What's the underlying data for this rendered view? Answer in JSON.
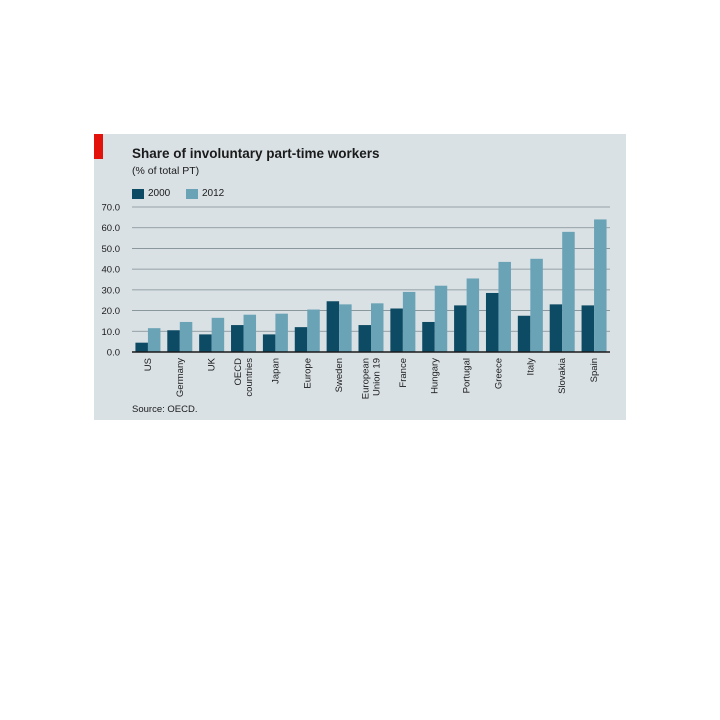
{
  "chart_data": {
    "type": "bar",
    "title": "Share of involuntary part-time workers",
    "subtitle": "(% of total PT)",
    "categories": [
      [
        "US"
      ],
      [
        "Germany"
      ],
      [
        "UK"
      ],
      [
        "OECD",
        "countries"
      ],
      [
        "Japan"
      ],
      [
        "Europe"
      ],
      [
        "Sweden"
      ],
      [
        "European",
        "Union 19"
      ],
      [
        "France"
      ],
      [
        "Hungary"
      ],
      [
        "Portugal"
      ],
      [
        "Greece"
      ],
      [
        "Italy"
      ],
      [
        "Slovakia"
      ],
      [
        "Spain"
      ]
    ],
    "series": [
      {
        "name": "2000",
        "color": "#0d4a63",
        "values": [
          4.5,
          10.5,
          8.5,
          13.0,
          8.5,
          12.0,
          24.5,
          13.0,
          21.0,
          14.5,
          22.5,
          28.5,
          17.5,
          23.0,
          22.5
        ]
      },
      {
        "name": "2012",
        "color": "#6aa3b6",
        "values": [
          11.5,
          14.5,
          16.5,
          18.0,
          18.5,
          20.5,
          23.0,
          23.5,
          29.0,
          32.0,
          35.5,
          43.5,
          45.0,
          58.0,
          64.0
        ]
      }
    ],
    "ylim": [
      0,
      70
    ],
    "yticks": [
      "0.0",
      "10.0",
      "20.0",
      "30.0",
      "40.0",
      "50.0",
      "60.0",
      "70.0"
    ],
    "grid": true,
    "legend_position": "top-left",
    "source": "Source: OECD.",
    "colors": {
      "background": "#d9e1e5",
      "accent": "#e3120b",
      "grid": "#7f8d93",
      "axis": "#1b1b1b"
    }
  }
}
